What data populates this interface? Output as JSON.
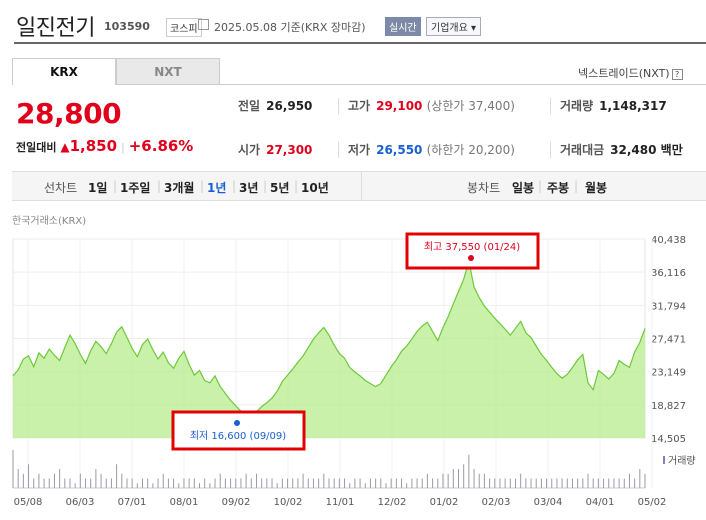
{
  "stock": {
    "name": "일진전기",
    "code": "103590",
    "market": "코스피",
    "date_text": "2025.05.08 기준(KRX 장마감)",
    "live_label": "실시간",
    "corp_label": "기업개요 ▾"
  },
  "tabs": {
    "krx": "KRX",
    "nxt": "NXT"
  },
  "nxt_link": "넥스트레이드(NXT)",
  "nxt_help": "?",
  "quote": {
    "price": "28,800",
    "change_label": "전일대비",
    "change_arrow": "▲",
    "change_value": "1,850",
    "change_pct": "+6.86%"
  },
  "summary": {
    "prev_label": "전일",
    "prev": "26,950",
    "high_label": "고가",
    "high": "29,100",
    "upper_limit": "(상한가 37,400)",
    "volume_label": "거래량",
    "volume": "1,148,317",
    "open_label": "시가",
    "open": "27,300",
    "low_label": "저가",
    "low": "26,550",
    "lower_limit": "(하한가 20,200)",
    "amount_label": "거래대금",
    "amount": "32,480 백만"
  },
  "periods": {
    "line_label": "선차트",
    "items": [
      "1일",
      "1주일",
      "3개월",
      "1년",
      "3년",
      "5년",
      "10년"
    ],
    "selected": "1년",
    "candle_label": "봉차트",
    "candles": [
      "일봉",
      "주봉",
      "월봉"
    ]
  },
  "source_label": "한국거래소(KRX)",
  "colors": {
    "up": "#e0001b",
    "down": "#1a5fd0",
    "area": "#b8ec8c",
    "line": "#6cc93a"
  },
  "chart_data": {
    "type": "area",
    "y_ticks": [
      "40,438",
      "36,116",
      "31,794",
      "27,471",
      "23,149",
      "18,827",
      "14,505"
    ],
    "ylim": [
      14505,
      40438
    ],
    "x_ticks": [
      "05/08",
      "06/03",
      "07/01",
      "08/01",
      "09/02",
      "10/02",
      "11/01",
      "12/02",
      "01/02",
      "02/03",
      "03/04",
      "04/01",
      "05/02"
    ],
    "volume_label": "거래량",
    "annotations": {
      "high": {
        "text": "최고 37,550 (01/24)",
        "value": 37550
      },
      "low": {
        "text": "최저 16,600 (09/09)",
        "value": 16600
      }
    },
    "prices": [
      22600,
      23400,
      24800,
      25200,
      23800,
      25600,
      24900,
      26100,
      25300,
      24600,
      26300,
      27900,
      26800,
      25400,
      24200,
      25900,
      27100,
      26400,
      25500,
      26800,
      28300,
      29000,
      27600,
      26200,
      25100,
      26700,
      27400,
      26000,
      24800,
      25700,
      24300,
      23600,
      24900,
      25800,
      24100,
      22700,
      23300,
      22000,
      21700,
      22600,
      21200,
      20300,
      19400,
      18700,
      18000,
      17300,
      16600,
      17900,
      18600,
      19100,
      19700,
      20600,
      21900,
      22700,
      23500,
      24400,
      25200,
      26300,
      27400,
      28200,
      28900,
      27900,
      26600,
      25500,
      24900,
      23700,
      23100,
      22600,
      22000,
      21600,
      21200,
      21600,
      22700,
      23800,
      24700,
      25800,
      26500,
      27400,
      28400,
      29100,
      29600,
      28400,
      27200,
      28900,
      30300,
      32000,
      33600,
      35200,
      37550,
      34200,
      32800,
      31700,
      30900,
      30100,
      29400,
      28700,
      27900,
      28800,
      29700,
      28200,
      27600,
      26500,
      25400,
      24600,
      23700,
      22900,
      22300,
      22800,
      23700,
      24700,
      25400,
      21700,
      20800,
      23300,
      22800,
      22200,
      22900,
      24600,
      24100,
      23700,
      25700,
      26950,
      28800
    ],
    "volumes": [
      8,
      4,
      3,
      5,
      2,
      3,
      2,
      2,
      3,
      4,
      2,
      2,
      1,
      3,
      2,
      2,
      4,
      3,
      2,
      2,
      5,
      3,
      2,
      2,
      1,
      2,
      2,
      1,
      2,
      3,
      2,
      2,
      1,
      2,
      2,
      2,
      1,
      2,
      1,
      2,
      3,
      2,
      2,
      2,
      2,
      3,
      2,
      3,
      2,
      2,
      2,
      1,
      2,
      2,
      2,
      2,
      3,
      2,
      2,
      2,
      3,
      2,
      2,
      2,
      2,
      1,
      2,
      2,
      1,
      2,
      2,
      2,
      1,
      2,
      2,
      2,
      1,
      2,
      2,
      2,
      3,
      2,
      2,
      3,
      3,
      4,
      4,
      5,
      7,
      4,
      3,
      3,
      2,
      2,
      2,
      2,
      2,
      2,
      3,
      2,
      2,
      2,
      2,
      2,
      2,
      2,
      2,
      2,
      2,
      2,
      2,
      3,
      2,
      2,
      2,
      2,
      2,
      2,
      2,
      3,
      2,
      4,
      3
    ]
  }
}
